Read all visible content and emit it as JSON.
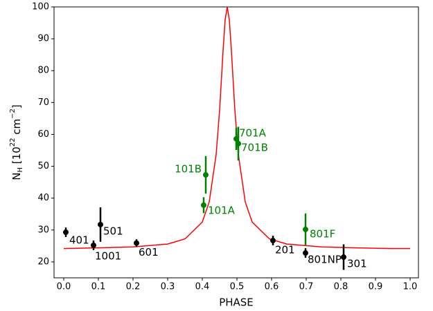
{
  "chart_data": {
    "type": "scatter",
    "xlabel": "PHASE",
    "ylabel": [
      "N",
      "H",
      " [10",
      "22",
      " cm",
      "−2",
      "]"
    ],
    "xlim": [
      -0.028,
      1.024
    ],
    "ylim": [
      15,
      100
    ],
    "xticks": [
      {
        "value": 0,
        "label": "0.0"
      },
      0.1,
      0.2,
      0.3,
      0.4,
      0.5,
      0.6,
      0.7,
      0.8,
      0.9,
      {
        "value": 1,
        "label": "1.0"
      }
    ],
    "yticks": [
      20,
      30,
      40,
      50,
      60,
      70,
      80,
      90,
      100
    ],
    "points": {
      "x": [
        0.006,
        0.086,
        0.106,
        0.21,
        0.404,
        0.41,
        0.498,
        0.504,
        0.604,
        0.698,
        0.698,
        0.808
      ],
      "values": [
        29.3,
        25.2,
        31.7,
        25.9,
        37.8,
        47.3,
        58.6,
        57.1,
        26.7,
        30.2,
        22.8,
        21.5
      ],
      "errors": [
        1.5,
        1.5,
        5.4,
        1.2,
        2.5,
        5.9,
        3.5,
        5.3,
        1.5,
        5,
        1.5,
        4
      ],
      "labels": [
        "401",
        "1001",
        "501",
        "601",
        "101A",
        "101B",
        "701A",
        "701B",
        "201",
        "801F",
        "801NP",
        "301"
      ],
      "colors": [
        "#000000",
        "#000000",
        "#000000",
        "#000000",
        "#008000",
        "#008000",
        "#008000",
        "#008000",
        "#000000",
        "#008000",
        "#000000",
        "#000000"
      ]
    },
    "curve": {
      "color": "#ff0000",
      "x": [
        0,
        0.1,
        0.2,
        0.3,
        0.35,
        0.4,
        0.42,
        0.44,
        0.45,
        0.46,
        0.466,
        0.472,
        0.478,
        0.484,
        0.494,
        0.504,
        0.524,
        0.544,
        0.594,
        0.644,
        0.744,
        0.844,
        0.944,
        1.0
      ],
      "values": [
        24.2,
        24.4,
        24.7,
        25.6,
        27.2,
        32.5,
        38.8,
        53.7,
        67.7,
        86.3,
        96,
        100,
        96,
        86.3,
        67.7,
        53.7,
        38.8,
        32.5,
        27.2,
        25.6,
        24.7,
        24.4,
        24.2,
        24.2
      ]
    }
  }
}
